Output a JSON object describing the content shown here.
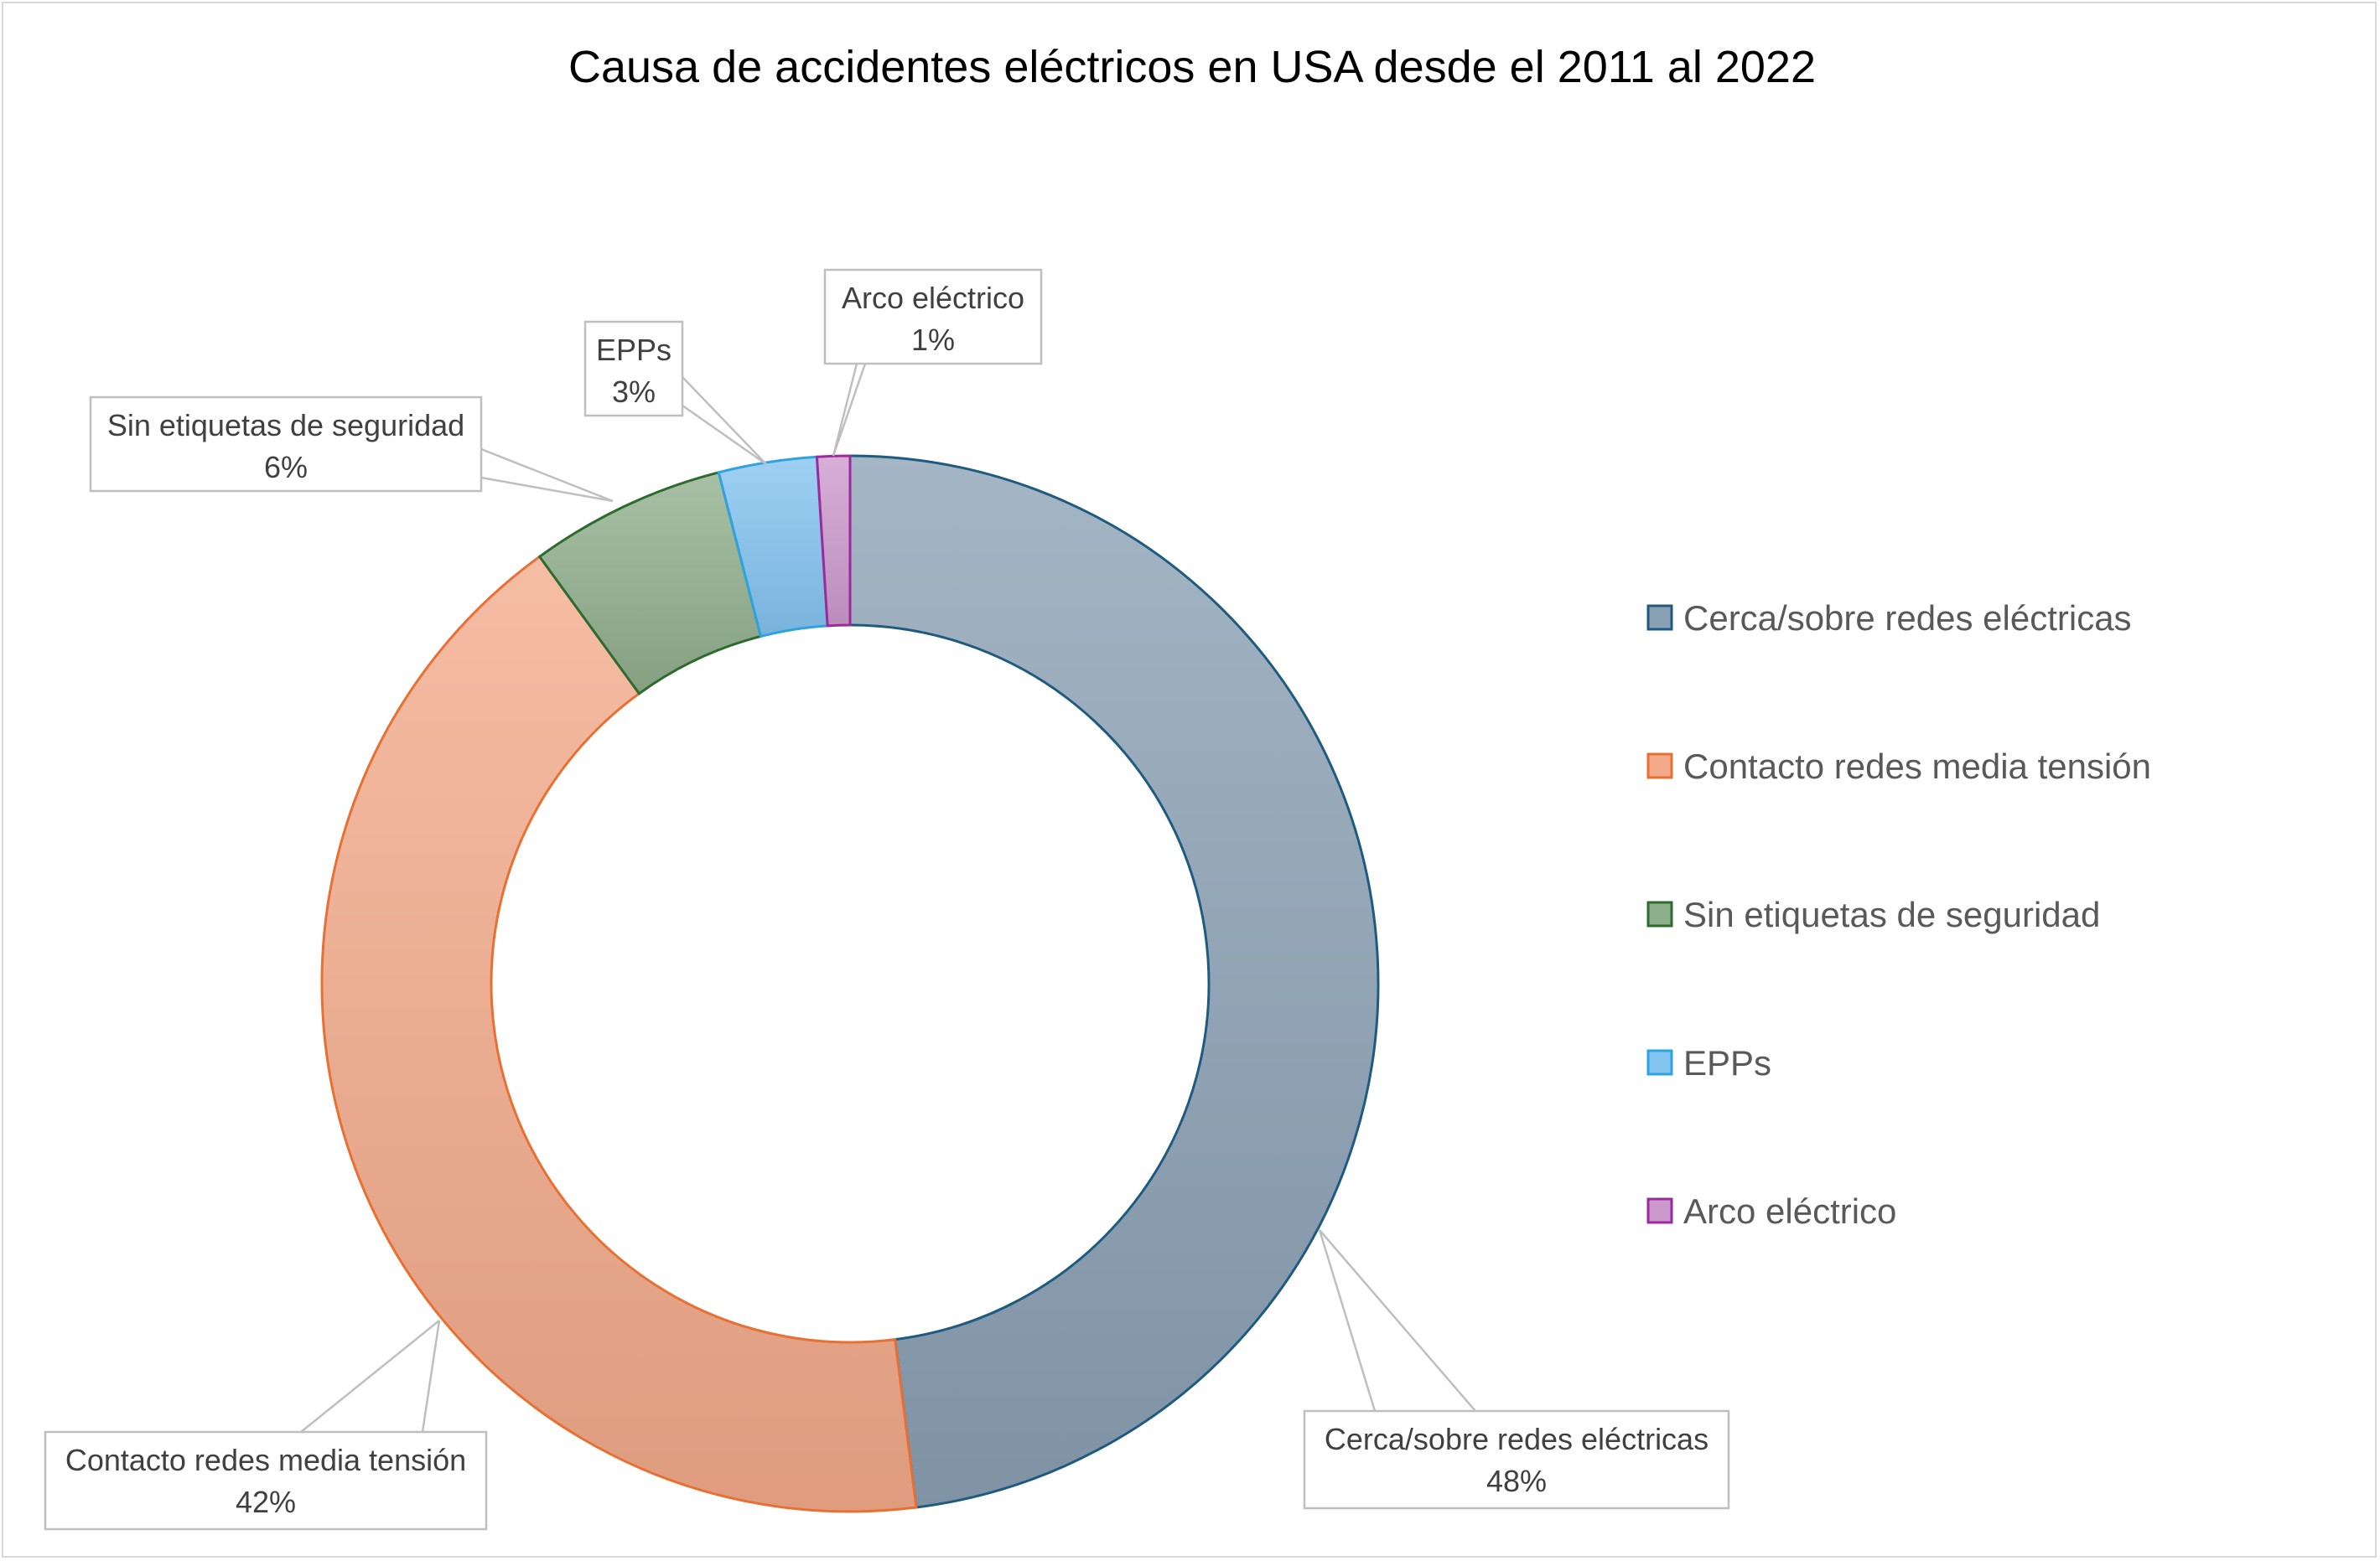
{
  "chart_data": {
    "type": "pie",
    "variant": "doughnut",
    "title": "Causa de accidentes eléctricos en USA desde el 2011 al 2022",
    "categories": [
      "Cerca/sobre redes eléctricas",
      "Contacto redes media tensión",
      "Sin etiquetas de seguridad",
      "EPPs",
      "Arco eléctrico"
    ],
    "values": [
      48,
      42,
      6,
      3,
      1
    ],
    "value_labels": [
      "48%",
      "42%",
      "6%",
      "3%",
      "1%"
    ],
    "colors": [
      "#8aa0b3",
      "#f2aa8a",
      "#8fae8c",
      "#83c3ef",
      "#cc99cc"
    ],
    "stroke_colors": [
      "#1f5b80",
      "#e87033",
      "#2e6b2e",
      "#2ea3e0",
      "#9b2a9b"
    ],
    "legend": {
      "position": "right",
      "entries": [
        "Cerca/sobre redes eléctricas",
        "Contacto redes media tensión",
        "Sin etiquetas de seguridad",
        "EPPs",
        "Arco eléctrico"
      ]
    }
  }
}
